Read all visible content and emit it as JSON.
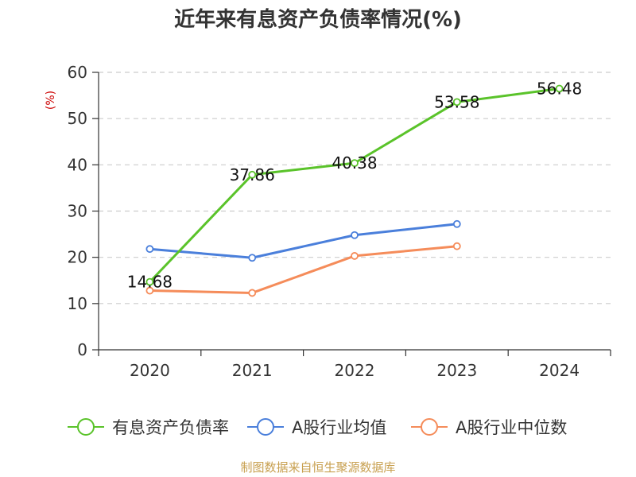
{
  "chart_data": {
    "type": "line",
    "title": "近年来有息资产负债率情况(%)",
    "ylabel": "(%)",
    "xlabel": "",
    "categories": [
      "2020",
      "2021",
      "2022",
      "2023",
      "2024"
    ],
    "ylim": [
      0,
      60
    ],
    "yticks": [
      0,
      10,
      20,
      30,
      40,
      50,
      60
    ],
    "grid": true,
    "legend_position": "bottom",
    "series": [
      {
        "name": "有息资产负债率",
        "color": "#5ac32a",
        "values": [
          14.68,
          37.86,
          40.38,
          53.58,
          56.48
        ],
        "labels": [
          "14.68",
          "37.86",
          "40.38",
          "53.58",
          "56.48"
        ]
      },
      {
        "name": "A股行业均值",
        "color": "#4a7fdb",
        "values": [
          21.8,
          19.9,
          24.8,
          27.2,
          null
        ]
      },
      {
        "name": "A股行业中位数",
        "color": "#f58c5a",
        "values": [
          12.8,
          12.3,
          20.3,
          22.4,
          null
        ]
      }
    ],
    "source": "制图数据来自恒生聚源数据库"
  }
}
